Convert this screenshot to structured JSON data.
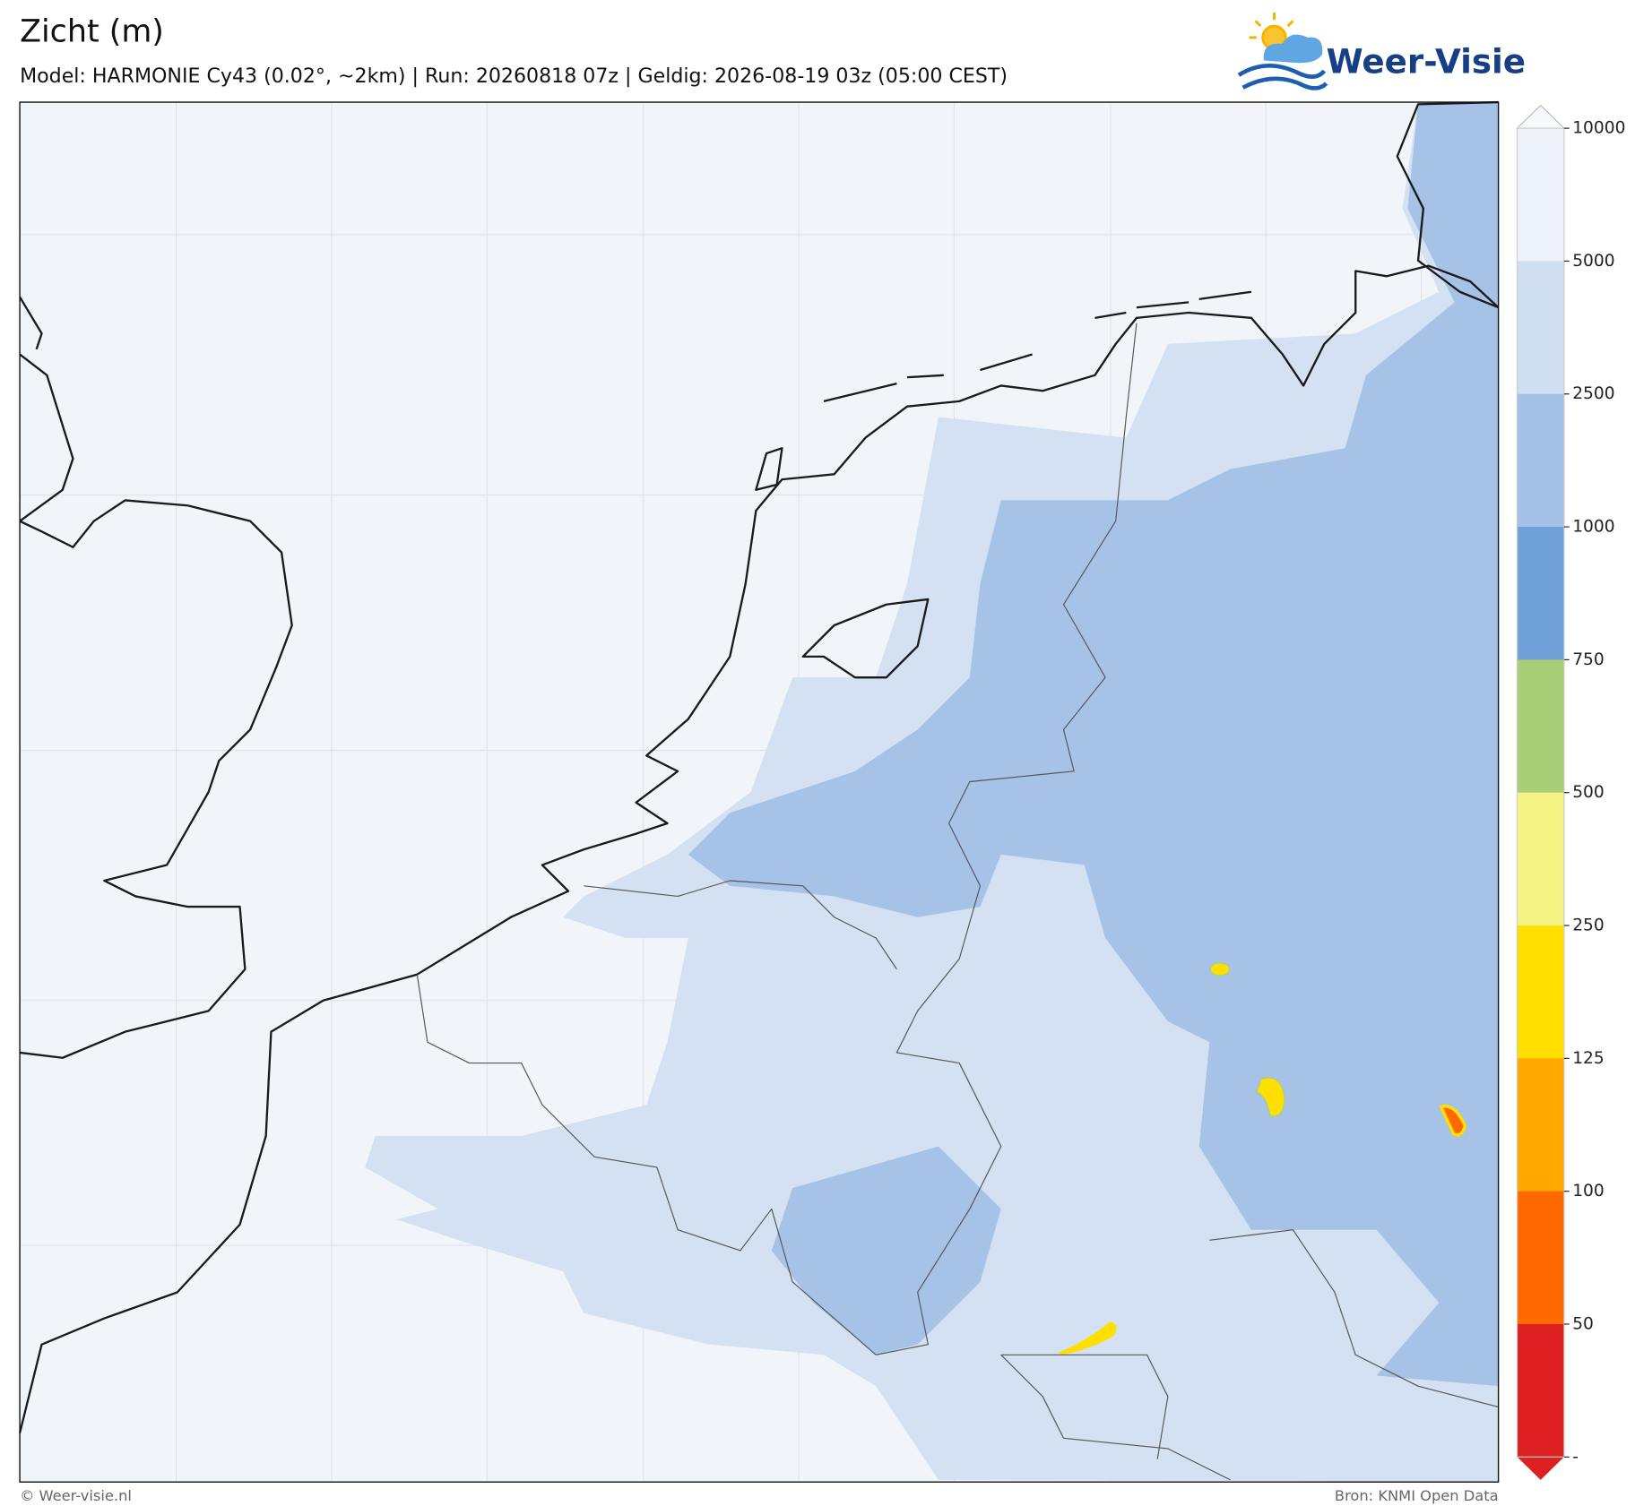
{
  "header": {
    "title": "Zicht (m)",
    "subtitle": "Model: HARMONIE Cy43 (0.02°, ~2km)  |  Run: 20260818 07z  |  Geldig: 2026-08-19 03z (05:00 CEST)",
    "logo": "Weer-Visie"
  },
  "legend": {
    "ticks": [
      "10000",
      "5000",
      "2500",
      "1000",
      "750",
      "500",
      "250",
      "125",
      "100",
      "50",
      "-"
    ],
    "colors": [
      "#eef3f9",
      "#cfdef0",
      "#a3c0e6",
      "#6fa0d8",
      "#a8cf78",
      "#f4f384",
      "#ffdf00",
      "#ffa800",
      "#ff6a00",
      "#dd2020"
    ]
  },
  "footer": {
    "left": "© Weer-visie.nl",
    "right": "Bron: KNMI Open Data"
  }
}
